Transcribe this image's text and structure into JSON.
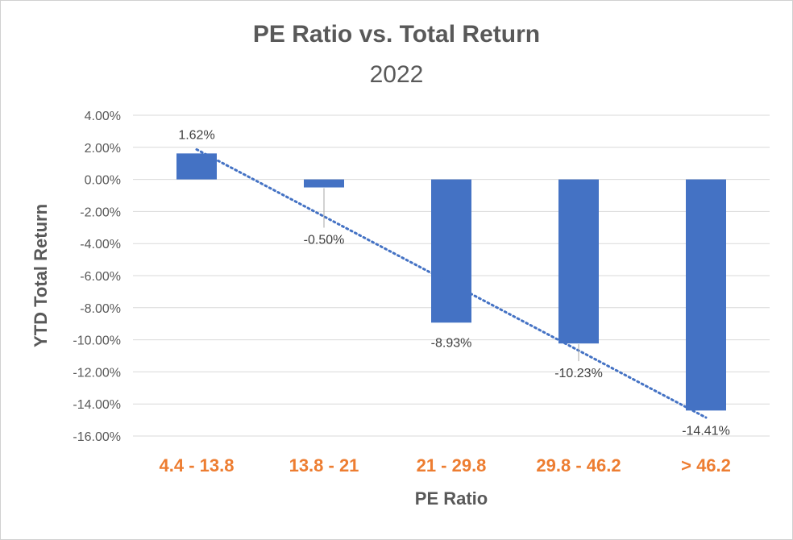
{
  "chart_data": {
    "type": "bar",
    "title": "PE Ratio vs. Total Return",
    "subtitle": "2022",
    "xlabel": "PE Ratio",
    "ylabel": "YTD Total Return",
    "categories": [
      "4.4 - 13.8",
      "13.8 - 21",
      "21 - 29.8",
      "29.8 - 46.2",
      "> 46.2"
    ],
    "values": [
      1.62,
      -0.5,
      -8.93,
      -10.23,
      -14.41
    ],
    "data_labels": [
      "1.62%",
      "-0.50%",
      "-8.93%",
      "-10.23%",
      "-14.41%"
    ],
    "y_ticks": [
      "4.00%",
      "2.00%",
      "0.00%",
      "-2.00%",
      "-4.00%",
      "-6.00%",
      "-8.00%",
      "-10.00%",
      "-12.00%",
      "-14.00%",
      "-16.00%"
    ],
    "ylim": [
      -16,
      4
    ],
    "grid": true,
    "trendline": {
      "type": "linear",
      "style": "dotted"
    },
    "colors": {
      "bar": "#4472c4",
      "trendline": "#4472c4",
      "category_labels": "#ed7d31",
      "grid": "#d9d9d9"
    }
  }
}
